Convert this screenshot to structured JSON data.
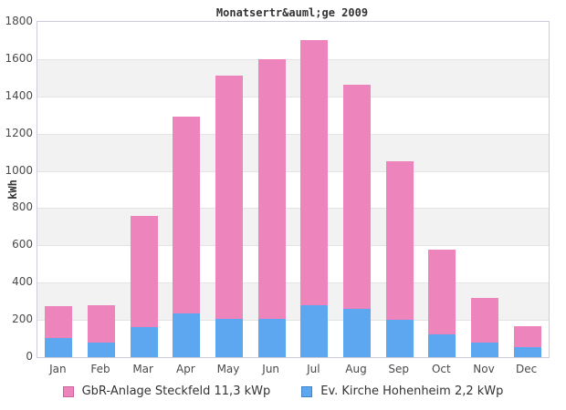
{
  "chart_data": {
    "type": "bar",
    "stacked": true,
    "title": "Monatsertr&auml;ge 2009",
    "ylabel": "kWh",
    "xlabel": "",
    "categories": [
      "Jan",
      "Feb",
      "Mar",
      "Apr",
      "May",
      "Jun",
      "Jul",
      "Aug",
      "Sep",
      "Oct",
      "Nov",
      "Dec"
    ],
    "series": [
      {
        "name": "GbR-Anlage Steckfeld 11,3 kWp",
        "color": "#ee84bc",
        "border_color": "#c7639e",
        "values": [
          170,
          200,
          600,
          1055,
          1305,
          1395,
          1420,
          1205,
          850,
          455,
          240,
          110
        ]
      },
      {
        "name": "Ev. Kirche Hohenheim 2,2 kWp",
        "color": "#5da6f0",
        "border_color": "#4480c4",
        "values": [
          105,
          80,
          160,
          235,
          205,
          205,
          280,
          260,
          200,
          120,
          80,
          55
        ]
      }
    ],
    "stack_totals": [
      275,
      280,
      760,
      1290,
      1510,
      1600,
      1700,
      1465,
      1050,
      575,
      320,
      165
    ],
    "stack_order_bottom_to_top": [
      "Ev. Kirche Hohenheim 2,2 kWp",
      "GbR-Anlage Steckfeld 11,3 kWp"
    ],
    "ylim": [
      0,
      1800
    ],
    "y_ticks": [
      0,
      200,
      400,
      600,
      800,
      1000,
      1200,
      1400,
      1600,
      1800
    ],
    "grid": true,
    "legend_position": "bottom",
    "band_colors": [
      "#ffffff",
      "#f2f2f2"
    ],
    "gridline_color": "#e4e4e4",
    "plot_border_color": "#ccccdd",
    "tick_text_color": "#4a4a4a"
  }
}
